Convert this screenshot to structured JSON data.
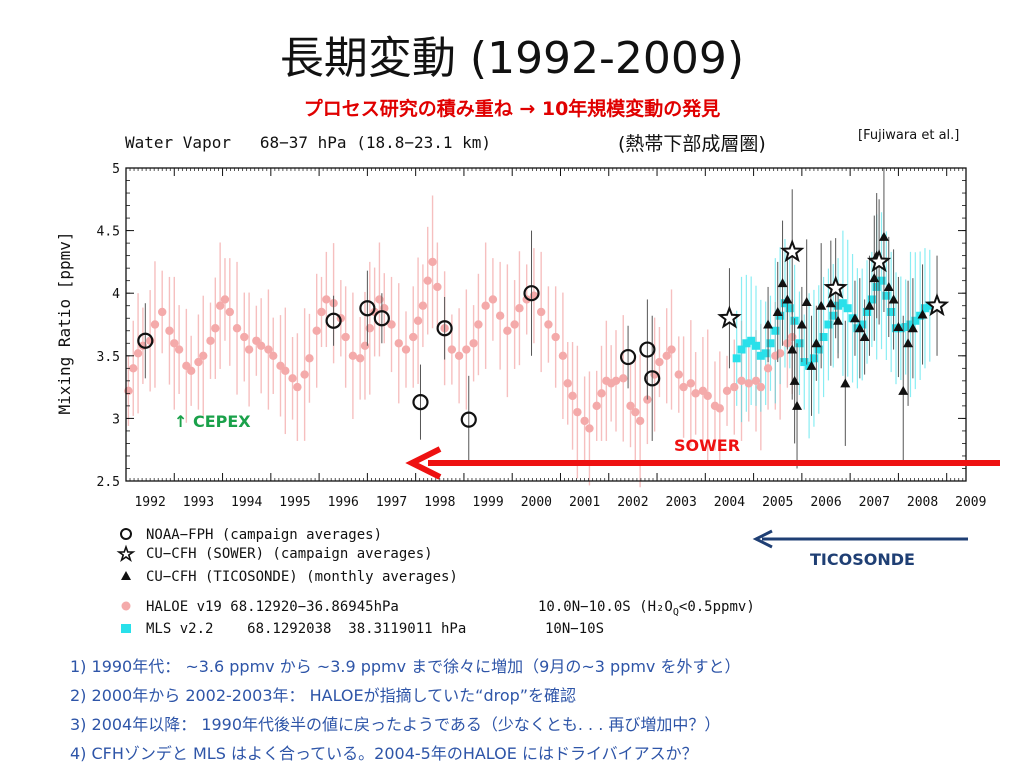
{
  "slide": {
    "title": "長期変動 (1992-2009)",
    "subtitle": "プロセス研究の積み重ね → 10年規模変動の発見",
    "citation": "[Fujiwara et al.]"
  },
  "chart_data": {
    "type": "scatter",
    "title": "Water Vapor   68−37 hPa (18.8−23.1 km)",
    "title_note": "(熱帯下部成層圏)",
    "xlabel": "",
    "ylabel": "Mixing Ratio [ppmv]",
    "xlim": [
      1992,
      2009.4
    ],
    "ylim": [
      2.5,
      5
    ],
    "xticks": [
      "1992",
      "1993",
      "1994",
      "1995",
      "1996",
      "1997",
      "1998",
      "1999",
      "2000",
      "2001",
      "2002",
      "2003",
      "2004",
      "2005",
      "2006",
      "2007",
      "2008",
      "2009"
    ],
    "yticks": [
      "2.5",
      "3",
      "3.5",
      "4",
      "4.5",
      "5"
    ],
    "colors": {
      "haloe": "#f4aaaa",
      "mls": "#29e0ea",
      "black": "#111111",
      "arrow_red": "#ee1111",
      "arrow_blue": "#1f3f74",
      "cepex": "#1aa14a"
    },
    "series": [
      {
        "name": "NOAA−FPH (campaign averages)",
        "marker": "open-circle",
        "points": [
          [
            1992.4,
            3.62,
            0.3
          ],
          [
            1996.3,
            3.78,
            0.2
          ],
          [
            1997.0,
            3.88,
            0.3
          ],
          [
            1997.3,
            3.8,
            0.2
          ],
          [
            1998.1,
            3.13,
            0.3
          ],
          [
            1998.6,
            3.72,
            0.25
          ],
          [
            1999.1,
            2.99,
            0.35
          ],
          [
            2000.4,
            4.0,
            0.5
          ],
          [
            2002.4,
            3.49,
            0.25
          ],
          [
            2002.8,
            3.55,
            0.4
          ],
          [
            2002.9,
            3.32,
            0.5
          ]
        ]
      },
      {
        "name": "CU−CFH (SOWER) (campaign averages)",
        "marker": "open-star",
        "points": [
          [
            2004.5,
            3.8,
            0.4
          ],
          [
            2005.8,
            4.33,
            0.5
          ],
          [
            2006.7,
            4.04,
            0.4
          ],
          [
            2007.6,
            4.25,
            0.5
          ],
          [
            2008.8,
            3.9,
            0.4
          ]
        ]
      },
      {
        "name": "CU−CFH (TICOSONDE) (monthly averages)",
        "marker": "filled-triangle",
        "points": [
          [
            2005.3,
            3.75,
            0.3
          ],
          [
            2005.5,
            3.85,
            0.4
          ],
          [
            2005.6,
            4.08,
            0.5
          ],
          [
            2005.7,
            3.95,
            0.4
          ],
          [
            2005.8,
            3.55,
            0.4
          ],
          [
            2005.85,
            3.3,
            0.5
          ],
          [
            2005.9,
            3.1,
            0.5
          ],
          [
            2006.0,
            3.75,
            0.3
          ],
          [
            2006.1,
            3.93,
            0.5
          ],
          [
            2006.2,
            3.42,
            0.4
          ],
          [
            2006.3,
            3.6,
            0.3
          ],
          [
            2006.4,
            3.9,
            0.5
          ],
          [
            2006.6,
            3.92,
            0.5
          ],
          [
            2006.75,
            3.78,
            0.3
          ],
          [
            2006.9,
            3.28,
            0.5
          ],
          [
            2007.1,
            3.8,
            0.3
          ],
          [
            2007.2,
            3.72,
            0.4
          ],
          [
            2007.3,
            3.65,
            0.3
          ],
          [
            2007.4,
            3.9,
            0.4
          ],
          [
            2007.5,
            4.12,
            0.5
          ],
          [
            2007.55,
            4.3,
            0.5
          ],
          [
            2007.7,
            4.45,
            0.6
          ],
          [
            2007.8,
            4.05,
            0.4
          ],
          [
            2007.9,
            3.95,
            0.4
          ],
          [
            2008.0,
            3.73,
            0.4
          ],
          [
            2008.1,
            3.22,
            0.6
          ],
          [
            2008.2,
            3.6,
            0.5
          ],
          [
            2008.3,
            3.72,
            0.4
          ],
          [
            2008.5,
            3.83,
            0.4
          ]
        ]
      },
      {
        "name": "HALOE v19 68.12920−36.86945hPa",
        "name_extra": "10.0N−10.0S (H₂O",
        "name_sub": "Q",
        "name_tail": "<0.5ppmv)",
        "marker": "filled-circle",
        "points": [
          [
            1992.05,
            3.22
          ],
          [
            1992.15,
            3.4
          ],
          [
            1992.25,
            3.52
          ],
          [
            1992.35,
            3.58
          ],
          [
            1992.5,
            3.62
          ],
          [
            1992.6,
            3.75
          ],
          [
            1992.75,
            3.85
          ],
          [
            1992.9,
            3.7
          ],
          [
            1993.0,
            3.6
          ],
          [
            1993.1,
            3.55
          ],
          [
            1993.25,
            3.42
          ],
          [
            1993.35,
            3.38
          ],
          [
            1993.5,
            3.45
          ],
          [
            1993.6,
            3.5
          ],
          [
            1993.75,
            3.62
          ],
          [
            1993.85,
            3.72
          ],
          [
            1993.95,
            3.9
          ],
          [
            1994.05,
            3.95
          ],
          [
            1994.15,
            3.85
          ],
          [
            1994.3,
            3.72
          ],
          [
            1994.45,
            3.65
          ],
          [
            1994.55,
            3.55
          ],
          [
            1994.7,
            3.62
          ],
          [
            1994.8,
            3.58
          ],
          [
            1994.95,
            3.55
          ],
          [
            1995.05,
            3.5
          ],
          [
            1995.2,
            3.42
          ],
          [
            1995.3,
            3.38
          ],
          [
            1995.45,
            3.32
          ],
          [
            1995.55,
            3.25
          ],
          [
            1995.7,
            3.35
          ],
          [
            1995.8,
            3.48
          ],
          [
            1995.95,
            3.7
          ],
          [
            1996.05,
            3.85
          ],
          [
            1996.15,
            3.95
          ],
          [
            1996.3,
            3.92
          ],
          [
            1996.45,
            3.8
          ],
          [
            1996.55,
            3.65
          ],
          [
            1996.7,
            3.5
          ],
          [
            1996.85,
            3.48
          ],
          [
            1996.95,
            3.58
          ],
          [
            1997.05,
            3.72
          ],
          [
            1997.15,
            3.85
          ],
          [
            1997.25,
            3.95
          ],
          [
            1997.35,
            3.88
          ],
          [
            1997.5,
            3.75
          ],
          [
            1997.65,
            3.6
          ],
          [
            1997.8,
            3.55
          ],
          [
            1997.95,
            3.65
          ],
          [
            1998.05,
            3.78
          ],
          [
            1998.15,
            3.9
          ],
          [
            1998.25,
            4.1
          ],
          [
            1998.35,
            4.25
          ],
          [
            1998.45,
            4.05
          ],
          [
            1998.6,
            3.72
          ],
          [
            1998.75,
            3.55
          ],
          [
            1998.9,
            3.5
          ],
          [
            1999.05,
            3.55
          ],
          [
            1999.2,
            3.6
          ],
          [
            1999.3,
            3.75
          ],
          [
            1999.45,
            3.9
          ],
          [
            1999.6,
            3.95
          ],
          [
            1999.75,
            3.82
          ],
          [
            1999.9,
            3.7
          ],
          [
            2000.05,
            3.75
          ],
          [
            2000.15,
            3.88
          ],
          [
            2000.3,
            3.95
          ],
          [
            2000.45,
            3.98
          ],
          [
            2000.6,
            3.85
          ],
          [
            2000.75,
            3.75
          ],
          [
            2000.9,
            3.65
          ],
          [
            2001.05,
            3.5
          ],
          [
            2001.15,
            3.28
          ],
          [
            2001.25,
            3.18
          ],
          [
            2001.35,
            3.05
          ],
          [
            2001.5,
            2.98
          ],
          [
            2001.6,
            2.92
          ],
          [
            2001.75,
            3.1
          ],
          [
            2001.85,
            3.2
          ],
          [
            2001.95,
            3.3
          ],
          [
            2002.05,
            3.28
          ],
          [
            2002.15,
            3.3
          ],
          [
            2002.3,
            3.32
          ],
          [
            2002.45,
            3.1
          ],
          [
            2002.55,
            3.05
          ],
          [
            2002.65,
            2.98
          ],
          [
            2002.8,
            3.15
          ],
          [
            2002.95,
            3.35
          ],
          [
            2003.05,
            3.45
          ],
          [
            2003.2,
            3.5
          ],
          [
            2003.3,
            3.55
          ],
          [
            2003.45,
            3.35
          ],
          [
            2003.55,
            3.25
          ],
          [
            2003.7,
            3.28
          ],
          [
            2003.8,
            3.2
          ],
          [
            2003.95,
            3.22
          ],
          [
            2004.05,
            3.18
          ],
          [
            2004.2,
            3.1
          ],
          [
            2004.3,
            3.08
          ],
          [
            2004.45,
            3.22
          ],
          [
            2004.6,
            3.25
          ],
          [
            2004.75,
            3.3
          ],
          [
            2004.9,
            3.28
          ],
          [
            2005.05,
            3.3
          ],
          [
            2005.15,
            3.25
          ],
          [
            2005.3,
            3.4
          ],
          [
            2005.45,
            3.5
          ],
          [
            2005.55,
            3.52
          ],
          [
            2005.7,
            3.6
          ],
          [
            2005.8,
            3.65
          ]
        ]
      },
      {
        "name": "MLS v2.2    68.1292038  38.3119011 hPa",
        "name_extra": "10N−10S",
        "marker": "filled-square",
        "points": [
          [
            2004.65,
            3.48
          ],
          [
            2004.75,
            3.55
          ],
          [
            2004.85,
            3.6
          ],
          [
            2004.95,
            3.62
          ],
          [
            2005.05,
            3.58
          ],
          [
            2005.15,
            3.5
          ],
          [
            2005.25,
            3.52
          ],
          [
            2005.35,
            3.6
          ],
          [
            2005.45,
            3.7
          ],
          [
            2005.55,
            3.82
          ],
          [
            2005.65,
            3.92
          ],
          [
            2005.75,
            3.88
          ],
          [
            2005.85,
            3.78
          ],
          [
            2005.95,
            3.6
          ],
          [
            2006.05,
            3.45
          ],
          [
            2006.15,
            3.42
          ],
          [
            2006.25,
            3.48
          ],
          [
            2006.35,
            3.55
          ],
          [
            2006.45,
            3.65
          ],
          [
            2006.55,
            3.75
          ],
          [
            2006.65,
            3.82
          ],
          [
            2006.75,
            3.9
          ],
          [
            2006.85,
            3.92
          ],
          [
            2006.95,
            3.88
          ],
          [
            2007.05,
            3.8
          ],
          [
            2007.15,
            3.72
          ],
          [
            2007.25,
            3.75
          ],
          [
            2007.35,
            3.85
          ],
          [
            2007.45,
            3.95
          ],
          [
            2007.55,
            4.05
          ],
          [
            2007.65,
            4.1
          ],
          [
            2007.75,
            3.98
          ],
          [
            2007.85,
            3.85
          ],
          [
            2007.95,
            3.72
          ],
          [
            2008.05,
            3.72
          ],
          [
            2008.15,
            3.73
          ],
          [
            2008.25,
            3.75
          ],
          [
            2008.35,
            3.78
          ],
          [
            2008.45,
            3.82
          ],
          [
            2008.55,
            3.88
          ],
          [
            2008.65,
            3.9
          ]
        ]
      }
    ],
    "annotations": {
      "cepex": "↑ CEPEX",
      "sower": "SOWER",
      "ticosonde": "TICOSONDE"
    }
  },
  "notes": [
    "1)  1990年代：  ~3.6 ppmv から ~3.9 ppmv まで徐々に増加（9月の~3 ppmv を外すと）",
    "2)  2000年から 2002-2003年：  HALOEが指摘していた“drop”を確認",
    "3)  2004年以降：  1990年代後半の値に戻ったようである（少なくとも. . . 再び増加中？）",
    "4)  CFHゾンデと MLS はよく合っている。2004-5年のHALOE にはドライバイアスか？"
  ]
}
